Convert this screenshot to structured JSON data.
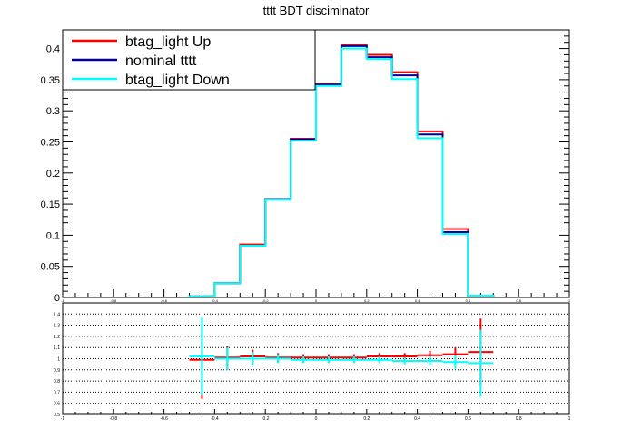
{
  "chart_data": {
    "type": "line",
    "title": "tttt BDT disciminator",
    "xlabel": "",
    "ylabel": "",
    "xlim": [
      -1,
      1
    ],
    "ylim": [
      0,
      0.43
    ],
    "bin_edges": [
      -0.5,
      -0.4,
      -0.3,
      -0.2,
      -0.1,
      0.0,
      0.1,
      0.2,
      0.3,
      0.4,
      0.5,
      0.6,
      0.7
    ],
    "x_ticks": [
      "-1",
      "-0.8",
      "-0.6",
      "-0.4",
      "-0.2",
      "0",
      "0.2",
      "0.4",
      "0.6",
      "0.8",
      "1"
    ],
    "y_ticks": [
      "0",
      "0.05",
      "0.1",
      "0.15",
      "0.2",
      "0.25",
      "0.3",
      "0.35",
      "0.4"
    ],
    "legend": {
      "placement": "top-left"
    },
    "series": [
      {
        "name": "btag_light Up",
        "color": "#ff0000",
        "values": [
          0.002,
          0.023,
          0.085,
          0.158,
          0.255,
          0.343,
          0.406,
          0.39,
          0.362,
          0.267,
          0.11,
          0.003
        ]
      },
      {
        "name": "nominal tttt",
        "color": "#000099",
        "values": [
          0.002,
          0.023,
          0.083,
          0.158,
          0.254,
          0.342,
          0.404,
          0.386,
          0.357,
          0.262,
          0.105,
          0.003
        ]
      },
      {
        "name": "btag_light Down",
        "color": "#00ffff",
        "values": [
          0.002,
          0.023,
          0.083,
          0.157,
          0.252,
          0.34,
          0.4,
          0.383,
          0.351,
          0.256,
          0.102,
          0.003
        ]
      }
    ],
    "ratio": {
      "ylim": [
        0.5,
        1.5
      ],
      "y_ticks": [
        "0.5",
        "0.6",
        "0.7",
        "0.8",
        "0.9",
        "1",
        "1.1",
        "1.2",
        "1.3",
        "1.4"
      ],
      "x_centers": [
        -0.45,
        -0.35,
        -0.25,
        -0.15,
        -0.05,
        0.05,
        0.15,
        0.25,
        0.35,
        0.45,
        0.55,
        0.65
      ],
      "up": [
        0.99,
        1.01,
        1.02,
        1.01,
        1.01,
        1.01,
        1.01,
        1.02,
        1.02,
        1.03,
        1.04,
        1.06
      ],
      "up_err": [
        0.35,
        0.1,
        0.06,
        0.04,
        0.03,
        0.03,
        0.03,
        0.03,
        0.03,
        0.04,
        0.06,
        0.3
      ],
      "down": [
        1.02,
        1.0,
        1.0,
        1.0,
        0.99,
        0.99,
        0.99,
        0.99,
        0.98,
        0.98,
        0.97,
        0.96
      ],
      "down_err": [
        0.35,
        0.1,
        0.06,
        0.04,
        0.03,
        0.03,
        0.03,
        0.03,
        0.03,
        0.04,
        0.06,
        0.3
      ]
    }
  }
}
